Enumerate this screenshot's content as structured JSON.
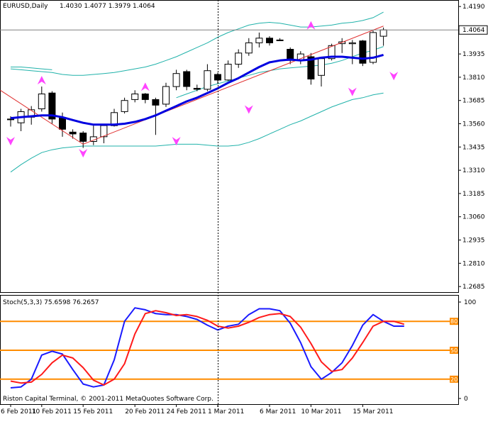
{
  "colors": {
    "background": "#ffffff",
    "frame": "#000000",
    "bull_candle": "#ffffff",
    "bear_candle": "#000000",
    "ma": "#0000e0",
    "envelope": "#20b2aa",
    "trendline": "#e03030",
    "fractal": "#ff44ff",
    "stoch_main": "#1a1aff",
    "stoch_signal": "#ff1a1a",
    "level_line": "#ff8c00",
    "crosshair": "#000000",
    "price_marker": "#000000"
  },
  "chart_data": [
    {
      "type": "candlestick",
      "title": "EURUSD,Daily",
      "ohlc_header": "1.4030 1.4077 1.3979 1.4064",
      "current_price_label": "1.4064",
      "current_price": 1.4064,
      "ylim": [
        1.2655,
        1.4225
      ],
      "y_ticks": [
        "1.4190",
        "1.4064",
        "1.3935",
        "1.3810",
        "1.3685",
        "1.3560",
        "1.3435",
        "1.3310",
        "1.3185",
        "1.3060",
        "1.2935",
        "1.2810",
        "1.2685"
      ],
      "crosshair_index": 20,
      "candles": [
        {
          "o": 1.3585,
          "h": 1.36,
          "l": 1.3545,
          "c": 1.3585
        },
        {
          "o": 1.3565,
          "h": 1.364,
          "l": 1.352,
          "c": 1.3625
        },
        {
          "o": 1.3595,
          "h": 1.3655,
          "l": 1.3555,
          "c": 1.3635
        },
        {
          "o": 1.364,
          "h": 1.376,
          "l": 1.3625,
          "c": 1.372
        },
        {
          "o": 1.3725,
          "h": 1.3735,
          "l": 1.356,
          "c": 1.3585
        },
        {
          "o": 1.359,
          "h": 1.362,
          "l": 1.349,
          "c": 1.353
        },
        {
          "o": 1.3515,
          "h": 1.353,
          "l": 1.348,
          "c": 1.3505
        },
        {
          "o": 1.351,
          "h": 1.352,
          "l": 1.343,
          "c": 1.3465
        },
        {
          "o": 1.3465,
          "h": 1.355,
          "l": 1.3445,
          "c": 1.349
        },
        {
          "o": 1.349,
          "h": 1.356,
          "l": 1.3455,
          "c": 1.355
        },
        {
          "o": 1.355,
          "h": 1.364,
          "l": 1.3545,
          "c": 1.362
        },
        {
          "o": 1.3625,
          "h": 1.37,
          "l": 1.3615,
          "c": 1.3685
        },
        {
          "o": 1.369,
          "h": 1.374,
          "l": 1.3675,
          "c": 1.372
        },
        {
          "o": 1.372,
          "h": 1.3725,
          "l": 1.367,
          "c": 1.369
        },
        {
          "o": 1.369,
          "h": 1.37,
          "l": 1.35,
          "c": 1.366
        },
        {
          "o": 1.3665,
          "h": 1.378,
          "l": 1.365,
          "c": 1.376
        },
        {
          "o": 1.376,
          "h": 1.385,
          "l": 1.374,
          "c": 1.383
        },
        {
          "o": 1.384,
          "h": 1.385,
          "l": 1.374,
          "c": 1.376
        },
        {
          "o": 1.375,
          "h": 1.377,
          "l": 1.3735,
          "c": 1.3745
        },
        {
          "o": 1.3745,
          "h": 1.388,
          "l": 1.3735,
          "c": 1.3845
        },
        {
          "o": 1.3825,
          "h": 1.3835,
          "l": 1.3775,
          "c": 1.3795
        },
        {
          "o": 1.3795,
          "h": 1.39,
          "l": 1.379,
          "c": 1.388
        },
        {
          "o": 1.388,
          "h": 1.396,
          "l": 1.386,
          "c": 1.394
        },
        {
          "o": 1.394,
          "h": 1.402,
          "l": 1.3925,
          "c": 1.3995
        },
        {
          "o": 1.3995,
          "h": 1.405,
          "l": 1.397,
          "c": 1.402
        },
        {
          "o": 1.402,
          "h": 1.403,
          "l": 1.398,
          "c": 1.3995
        },
        {
          "o": 1.401,
          "h": 1.402,
          "l": 1.4005,
          "c": 1.401
        },
        {
          "o": 1.396,
          "h": 1.397,
          "l": 1.388,
          "c": 1.39
        },
        {
          "o": 1.39,
          "h": 1.395,
          "l": 1.388,
          "c": 1.3935
        },
        {
          "o": 1.392,
          "h": 1.394,
          "l": 1.377,
          "c": 1.38
        },
        {
          "o": 1.382,
          "h": 1.392,
          "l": 1.376,
          "c": 1.391
        },
        {
          "o": 1.391,
          "h": 1.399,
          "l": 1.39,
          "c": 1.398
        },
        {
          "o": 1.399,
          "h": 1.402,
          "l": 1.394,
          "c": 1.4
        },
        {
          "o": 1.399,
          "h": 1.401,
          "l": 1.388,
          "c": 1.3995
        },
        {
          "o": 1.4005,
          "h": 1.401,
          "l": 1.387,
          "c": 1.3885
        },
        {
          "o": 1.389,
          "h": 1.406,
          "l": 1.388,
          "c": 1.405
        },
        {
          "o": 1.403,
          "h": 1.4077,
          "l": 1.3979,
          "c": 1.4064
        }
      ],
      "ma_line": [
        1.359,
        1.3595,
        1.36,
        1.3605,
        1.3605,
        1.3595,
        1.358,
        1.3565,
        1.3555,
        1.3555,
        1.3555,
        1.356,
        1.357,
        1.3585,
        1.3605,
        1.363,
        1.3655,
        1.368,
        1.37,
        1.3725,
        1.375,
        1.378,
        1.3805,
        1.3835,
        1.3865,
        1.389,
        1.39,
        1.3905,
        1.39,
        1.3905,
        1.3915,
        1.392,
        1.392,
        1.3915,
        1.391,
        1.3915,
        1.393
      ],
      "upper_envelope": [
        1.3855,
        1.385,
        1.3845,
        1.384,
        1.3835,
        1.3825,
        1.382,
        1.382,
        1.3825,
        1.383,
        1.3835,
        1.3845,
        1.3855,
        1.3865,
        1.388,
        1.39,
        1.392,
        1.3945,
        1.397,
        1.3995,
        1.4025,
        1.405,
        1.407,
        1.409,
        1.41,
        1.4105,
        1.41,
        1.409,
        1.408,
        1.408,
        1.4085,
        1.409,
        1.41,
        1.4105,
        1.4115,
        1.413,
        1.416
      ],
      "lower_envelope": [
        1.33,
        1.334,
        1.3375,
        1.3405,
        1.342,
        1.343,
        1.3435,
        1.344,
        1.344,
        1.344,
        1.344,
        1.344,
        1.344,
        1.344,
        1.344,
        1.3445,
        1.345,
        1.345,
        1.345,
        1.3445,
        1.344,
        1.344,
        1.3445,
        1.346,
        1.348,
        1.3505,
        1.353,
        1.3555,
        1.3575,
        1.36,
        1.3625,
        1.365,
        1.367,
        1.369,
        1.37,
        1.3715,
        1.3725
      ],
      "inner_upper_envelope": {
        "start_index": 0,
        "values": [
          1.3865,
          1.3865,
          1.386,
          1.3855,
          1.385
        ]
      },
      "inner_lower_envelope": {
        "start_index": 16,
        "values": [
          1.37,
          1.372,
          1.374,
          1.376,
          1.3775,
          1.379,
          1.3805,
          1.382,
          1.3835,
          1.3845,
          1.3855,
          1.386,
          1.3865,
          1.387,
          1.3875,
          1.3885,
          1.39,
          1.392,
          1.394,
          1.3955,
          1.3975
        ]
      },
      "trendlines": [
        {
          "from": {
            "index": -1,
            "price": 1.374
          },
          "to": {
            "index": 7,
            "price": 1.345
          }
        },
        {
          "from": {
            "index": 7,
            "price": 1.345
          },
          "to": {
            "index": 36,
            "price": 1.4085
          }
        }
      ],
      "fractals": [
        {
          "index": 0,
          "kind": "down",
          "price": 1.347
        },
        {
          "index": 3,
          "kind": "up",
          "price": 1.379
        },
        {
          "index": 7,
          "kind": "down",
          "price": 1.3405
        },
        {
          "index": 13,
          "kind": "up",
          "price": 1.3755
        },
        {
          "index": 16,
          "kind": "down",
          "price": 1.347
        },
        {
          "index": 23,
          "kind": "down",
          "price": 1.364
        },
        {
          "index": 29,
          "kind": "up",
          "price": 1.4085
        },
        {
          "index": 33,
          "kind": "down",
          "price": 1.3735
        },
        {
          "index": 37,
          "kind": "down",
          "price": 1.382
        }
      ]
    },
    {
      "type": "line",
      "title": "Stoch(5,3,3) 75.6598 76.2657",
      "ylim": [
        0,
        100
      ],
      "y_ticks": [
        "100",
        "0"
      ],
      "levels": [
        {
          "value": 80,
          "label": "80"
        },
        {
          "value": 50,
          "label": "50"
        },
        {
          "value": 20,
          "label": "20"
        }
      ],
      "series": [
        {
          "values": [
            11,
            12,
            20,
            45,
            49,
            46,
            30,
            15,
            12,
            14,
            40,
            80,
            94,
            92,
            88,
            87,
            87,
            85,
            82,
            76,
            71,
            75,
            77,
            87,
            93,
            93,
            91,
            78,
            58,
            33,
            20,
            27,
            37,
            55,
            76,
            87,
            80,
            75,
            75
          ]
        },
        {
          "values": [
            18,
            16,
            17,
            25,
            37,
            45,
            42,
            32,
            19,
            14,
            20,
            36,
            67,
            88,
            91,
            89,
            86,
            87,
            85,
            81,
            75,
            73,
            75,
            79,
            84,
            87,
            88,
            85,
            74,
            57,
            38,
            28,
            30,
            42,
            58,
            75,
            80,
            80,
            77
          ]
        }
      ],
      "x_labels": [
        {
          "text": "6 Feb 2011",
          "index": 0
        },
        {
          "text": "10 Feb 2011",
          "index": 3
        },
        {
          "text": "15 Feb 2011",
          "index": 7
        },
        {
          "text": "20 Feb 2011",
          "index": 12
        },
        {
          "text": "24 Feb 2011",
          "index": 16
        },
        {
          "text": "1 Mar 2011",
          "index": 20
        },
        {
          "text": "6 Mar 2011",
          "index": 25
        },
        {
          "text": "10 Mar 2011",
          "index": 29
        },
        {
          "text": "15 Mar 2011",
          "index": 34
        }
      ],
      "watermark": "Riston Capital Terminal, © 2001-2011 MetaQuotes Software Corp."
    }
  ]
}
